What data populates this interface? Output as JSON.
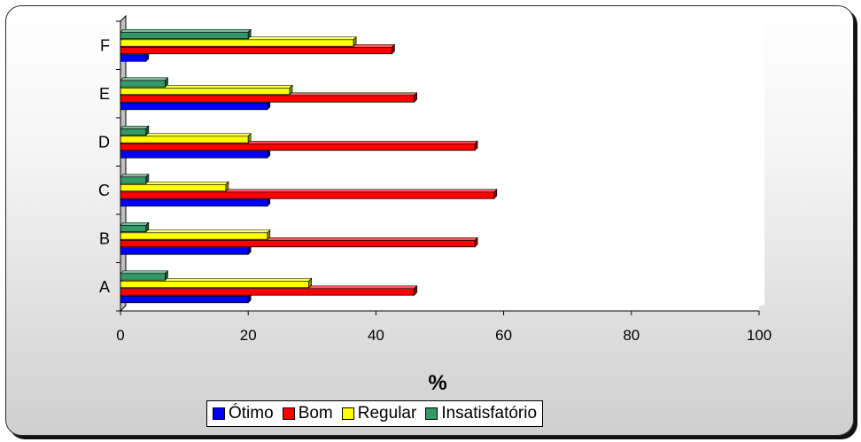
{
  "chart_data": {
    "type": "bar",
    "orientation": "horizontal",
    "categories": [
      "A",
      "B",
      "C",
      "D",
      "E",
      "F"
    ],
    "series": [
      {
        "name": "Ótimo",
        "color": "#0000ff",
        "values": [
          20,
          20,
          23,
          23,
          23,
          4
        ]
      },
      {
        "name": "Bom",
        "color": "#ff0000",
        "values": [
          46,
          55.5,
          58.5,
          55.5,
          46,
          42.5
        ]
      },
      {
        "name": "Regular",
        "color": "#ffff00",
        "values": [
          29.5,
          23,
          16.5,
          20,
          26.5,
          36.5
        ]
      },
      {
        "name": "Insatisfatório",
        "color": "#339966",
        "values": [
          7,
          4,
          4,
          4,
          7,
          20
        ]
      }
    ],
    "xlabel": "%",
    "ylabel": "",
    "xlim": [
      0,
      100
    ],
    "xticks": [
      0,
      20,
      40,
      60,
      80,
      100
    ],
    "grid": false,
    "legend_position": "bottom"
  }
}
